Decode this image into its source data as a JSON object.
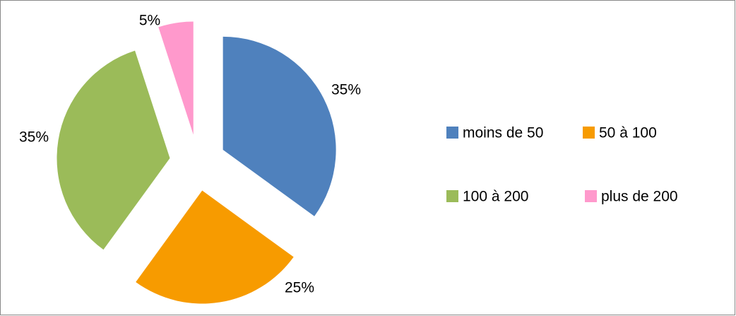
{
  "chart_data": {
    "type": "pie",
    "categories": [
      "moins de 50",
      "50 à 100",
      "100 à 200",
      "plus de 200"
    ],
    "values": [
      35,
      25,
      35,
      5
    ],
    "value_labels": [
      "35%",
      "25%",
      "35%",
      "5%"
    ],
    "colors": [
      "#4f81bd",
      "#f79b00",
      "#9bbb59",
      "#ff99cc"
    ],
    "legend": "right"
  }
}
